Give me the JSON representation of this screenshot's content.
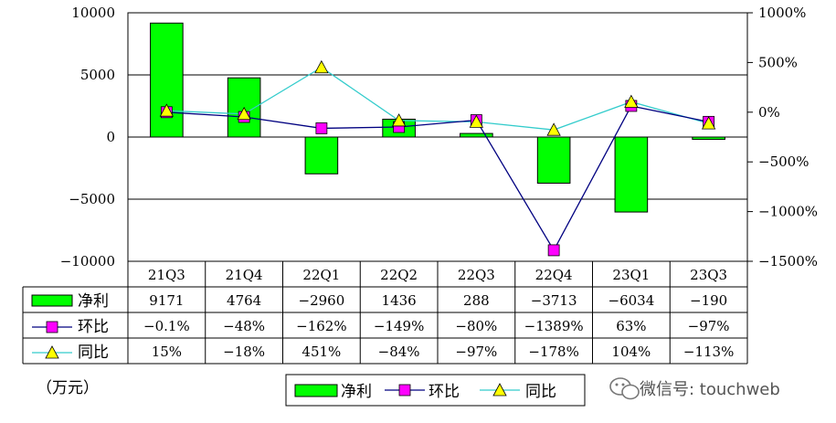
{
  "chart_data": {
    "type": "bar",
    "categories": [
      "21Q3",
      "21Q4",
      "22Q1",
      "22Q2",
      "22Q3",
      "22Q4",
      "23Q1",
      "23Q3"
    ],
    "series": [
      {
        "name": "净利",
        "kind": "bar",
        "axis": "left",
        "values": [
          9171,
          4764,
          -2960,
          1436,
          288,
          -3713,
          -6034,
          -190
        ],
        "labels": [
          "9171",
          "4764",
          "−2960",
          "1436",
          "288",
          "−3713",
          "−6034",
          "−190"
        ]
      },
      {
        "name": "环比",
        "kind": "line",
        "axis": "right",
        "values": [
          -0.1,
          -48,
          -162,
          -149,
          -80,
          -1389,
          63,
          -97
        ],
        "labels": [
          "−0.1%",
          "−48%",
          "−162%",
          "−149%",
          "−80%",
          "−1389%",
          "63%",
          "−97%"
        ]
      },
      {
        "name": "同比",
        "kind": "line",
        "axis": "right",
        "values": [
          15,
          -18,
          451,
          -84,
          -97,
          -178,
          104,
          -113
        ],
        "labels": [
          "15%",
          "−18%",
          "451%",
          "−84%",
          "−97%",
          "−178%",
          "104%",
          "−113%"
        ]
      }
    ],
    "left_axis": {
      "ylim": [
        -10000,
        10000
      ],
      "ticks": [
        10000,
        5000,
        0,
        -5000,
        -10000
      ],
      "tick_labels": [
        "10000",
        "5000",
        "0",
        "−5000",
        "−10000"
      ]
    },
    "right_axis": {
      "ylim": [
        -1500,
        1000
      ],
      "ticks": [
        1000,
        500,
        0,
        -500,
        -1000,
        -1500
      ],
      "tick_labels": [
        "1000%",
        "500%",
        "0%",
        "−500%",
        "−1000%",
        "−1500%"
      ]
    },
    "grid": true,
    "legend": "bottom",
    "data_table": true
  },
  "unit_label": "（万元）",
  "watermark": "微信号: touchweb",
  "colors": {
    "bar_fill": "#00ff00",
    "ratio_qoq_line": "#000080",
    "ratio_qoq_marker": "#ff00ff",
    "ratio_yoy_line": "#33cccc",
    "ratio_yoy_marker": "#ffff00"
  }
}
